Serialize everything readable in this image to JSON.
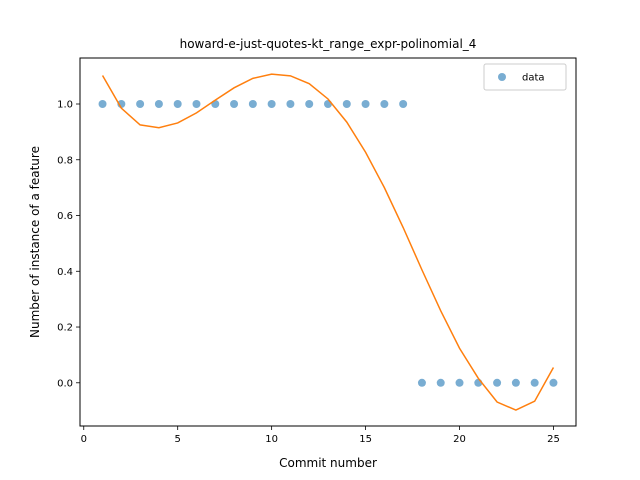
{
  "chart_data": {
    "type": "scatter",
    "title": "howard-e-just-quotes-kt_range_expr-polinomial_4",
    "xlabel": "Commit number",
    "ylabel": "Number of instance of a feature",
    "xlim": [
      -0.2,
      26.2
    ],
    "ylim": [
      -0.155,
      1.165
    ],
    "xticks": [
      0,
      5,
      10,
      15,
      20,
      25
    ],
    "xtick_labels": [
      "0",
      "5",
      "10",
      "15",
      "20",
      "25"
    ],
    "yticks": [
      0.0,
      0.2,
      0.4,
      0.6,
      0.8,
      1.0
    ],
    "ytick_labels": [
      "0.0",
      "0.2",
      "0.4",
      "0.6",
      "0.8",
      "1.0"
    ],
    "grid": false,
    "legend": {
      "position": "top-right",
      "entries": [
        "data"
      ]
    },
    "series": [
      {
        "name": "data",
        "kind": "scatter",
        "color": "#1f77b4",
        "x": [
          1,
          2,
          3,
          4,
          5,
          6,
          7,
          8,
          9,
          10,
          11,
          12,
          13,
          14,
          15,
          16,
          17,
          18,
          19,
          20,
          21,
          22,
          23,
          24,
          25
        ],
        "y": [
          1,
          1,
          1,
          1,
          1,
          1,
          1,
          1,
          1,
          1,
          1,
          1,
          1,
          1,
          1,
          1,
          1,
          0,
          0,
          0,
          0,
          0,
          0,
          0,
          0
        ]
      },
      {
        "kind": "line",
        "color": "#ff7f0e",
        "x": [
          1,
          2,
          3,
          4,
          5,
          6,
          7,
          8,
          9,
          10,
          11,
          12,
          13,
          14,
          15,
          16,
          17,
          18,
          19,
          20,
          21,
          22,
          23,
          24,
          25
        ],
        "y": [
          1.102,
          0.985,
          0.925,
          0.915,
          0.932,
          0.968,
          1.014,
          1.058,
          1.092,
          1.107,
          1.101,
          1.073,
          1.018,
          0.935,
          0.827,
          0.7,
          0.557,
          0.405,
          0.258,
          0.124,
          0.016,
          -0.069,
          -0.098,
          -0.066,
          0.055
        ]
      }
    ]
  }
}
